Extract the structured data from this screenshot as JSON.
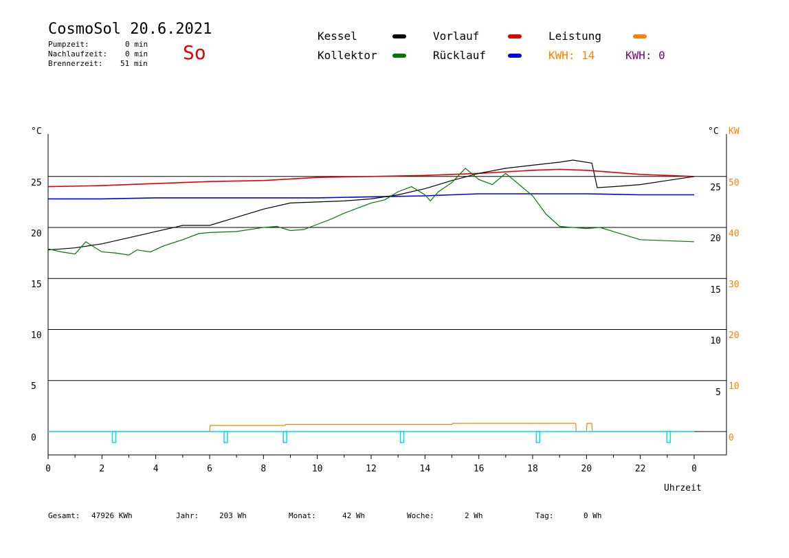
{
  "header": {
    "title": "CosmoSol 20.6.2021",
    "day": "So",
    "pumpzeit_label": "Pumpzeit:",
    "pumpzeit_value": "0 min",
    "nachlauf_label": "Nachlaufzeit:",
    "nachlauf_value": "0 min",
    "brenner_label": "Brennerzeit:",
    "brenner_value": "51 min"
  },
  "legend": {
    "kessel": "Kessel",
    "kollektor": "Kollektor",
    "vorlauf": "Vorlauf",
    "ruecklauf": "Rücklauf",
    "leistung": "Leistung",
    "kwh1": "KWH: 14",
    "kwh2": "KWH: 0"
  },
  "colors": {
    "kessel": "#000000",
    "kollektor": "#007800",
    "vorlauf": "#e00000",
    "ruecklauf": "#0000e0",
    "leistung": "#ff8000",
    "kwh2": "#800080",
    "pump": "#00e0e0"
  },
  "footer": {
    "gesamt_label": "Gesamt:",
    "gesamt_value": "47926 KWh",
    "jahr_label": "Jahr:",
    "jahr_value": "203 Wh",
    "monat_label": "Monat:",
    "monat_value": "42 Wh",
    "woche_label": "Woche:",
    "woche_value": "2 Wh",
    "tag_label": "Tag:",
    "tag_value": "0 Wh"
  },
  "chart_data": {
    "type": "line",
    "xlabel": "Uhrzeit",
    "left_unit": "°C",
    "right_unit_c": "°C",
    "right_unit_kw": "KW",
    "grid": true,
    "x_ticks": [
      "0",
      "2",
      "4",
      "6",
      "8",
      "10",
      "12",
      "14",
      "16",
      "18",
      "20",
      "22",
      "0"
    ],
    "y_ticks_left": [
      "25",
      "20",
      "15",
      "10",
      "5",
      "0"
    ],
    "y_ticks_right_c": [
      "25",
      "20",
      "15",
      "10",
      "5"
    ],
    "y_ticks_right_kw": [
      "50",
      "40",
      "30",
      "20",
      "10",
      "0"
    ],
    "ylim": [
      0,
      28
    ],
    "xlim": [
      0,
      24
    ],
    "series": [
      {
        "name": "Vorlauf",
        "color": "#e00000",
        "x": [
          0,
          2,
          4,
          6,
          8,
          10,
          12,
          14,
          16,
          18,
          19,
          20,
          21,
          22,
          24
        ],
        "y": [
          24.0,
          24.1,
          24.3,
          24.5,
          24.6,
          24.9,
          25.0,
          25.1,
          25.3,
          25.6,
          25.7,
          25.6,
          25.4,
          25.2,
          25.0
        ]
      },
      {
        "name": "Rücklauf",
        "color": "#0000e0",
        "x": [
          0,
          2,
          4,
          6,
          8,
          10,
          12,
          14,
          15,
          16,
          18,
          20,
          22,
          24
        ],
        "y": [
          22.8,
          22.8,
          22.9,
          22.9,
          22.9,
          22.9,
          23.0,
          23.1,
          23.2,
          23.3,
          23.3,
          23.3,
          23.2,
          23.2
        ]
      },
      {
        "name": "Kessel",
        "color": "#000000",
        "x": [
          0,
          1,
          2,
          3,
          4,
          5,
          6,
          7,
          8,
          9,
          10,
          11,
          12,
          13,
          14,
          15,
          16,
          17,
          18,
          19,
          19.5,
          20.2,
          20.4,
          21,
          22,
          23,
          24
        ],
        "y": [
          17.8,
          18.0,
          18.4,
          19.0,
          19.6,
          20.2,
          20.2,
          21.0,
          21.8,
          22.4,
          22.5,
          22.6,
          22.8,
          23.2,
          23.8,
          24.6,
          25.3,
          25.8,
          26.1,
          26.4,
          26.6,
          26.3,
          23.9,
          24.0,
          24.2,
          24.6,
          25.0
        ]
      },
      {
        "name": "Kollektor",
        "color": "#007800",
        "x": [
          0,
          0.5,
          1,
          1.4,
          2,
          2.5,
          3,
          3.3,
          3.8,
          4.3,
          5,
          5.6,
          6,
          7,
          8,
          8.5,
          9,
          9.5,
          10,
          10.5,
          11,
          11.5,
          12,
          12.5,
          13,
          13.5,
          14,
          14.2,
          14.5,
          15,
          15.5,
          16,
          16.5,
          17,
          17.5,
          18,
          18.5,
          19,
          19.5,
          20,
          20.5,
          21,
          22,
          23,
          24
        ],
        "y": [
          17.9,
          17.6,
          17.4,
          18.6,
          17.6,
          17.5,
          17.3,
          17.8,
          17.6,
          18.2,
          18.8,
          19.4,
          19.5,
          19.6,
          20.0,
          20.1,
          19.7,
          19.8,
          20.3,
          20.8,
          21.4,
          21.9,
          22.4,
          22.7,
          23.5,
          24.0,
          23.2,
          22.6,
          23.5,
          24.4,
          25.8,
          24.7,
          24.2,
          25.3,
          24.2,
          23.1,
          21.3,
          20.1,
          20.0,
          19.9,
          20.0,
          19.6,
          18.8,
          18.7,
          18.6
        ]
      },
      {
        "name": "Leistung",
        "color": "#ff8000",
        "x": [
          0,
          6,
          6.02,
          8.8,
          8.82,
          15,
          15.02,
          19.6,
          19.62,
          20,
          20.02,
          20.2,
          20.22,
          24
        ],
        "y": [
          0,
          0,
          0.6,
          0.6,
          0.7,
          0.7,
          0.8,
          0.8,
          0,
          0,
          0.8,
          0.8,
          0,
          0
        ]
      }
    ],
    "pump_markers_h": [
      2.45,
      6.6,
      8.8,
      13.15,
      18.2,
      23.05
    ]
  }
}
